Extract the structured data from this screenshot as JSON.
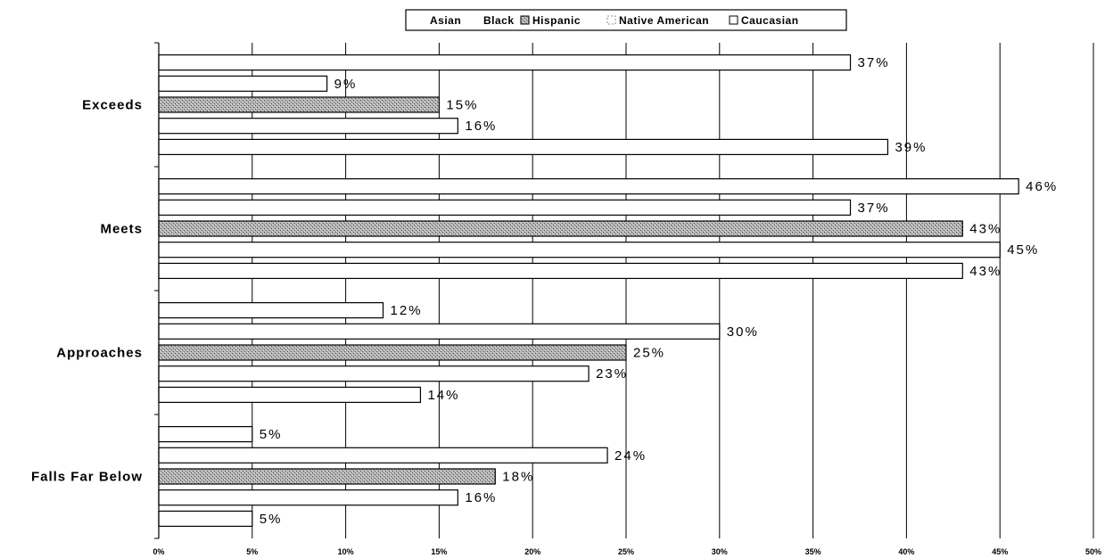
{
  "chart_data": {
    "type": "bar",
    "orientation": "horizontal",
    "categories": [
      "Exceeds",
      "Meets",
      "Approaches",
      "Falls Far Below"
    ],
    "series": [
      {
        "name": "Asian",
        "values": [
          37,
          46,
          12,
          5
        ],
        "color": "#ffffff"
      },
      {
        "name": "Black",
        "values": [
          9,
          37,
          30,
          24
        ],
        "color": "#ffffff"
      },
      {
        "name": "Hispanic",
        "values": [
          15,
          43,
          25,
          18
        ],
        "color": "#9a9a9a"
      },
      {
        "name": "Native American",
        "values": [
          16,
          45,
          23,
          16
        ],
        "color": "#ffffff"
      },
      {
        "name": "Caucasian",
        "values": [
          39,
          43,
          14,
          5
        ],
        "color": "#ffffff"
      }
    ],
    "value_labels": [
      [
        "37%",
        "46%",
        "12%",
        "5%"
      ],
      [
        "9%",
        "37%",
        "30%",
        "24%"
      ],
      [
        "15%",
        "43%",
        "25%",
        "18%"
      ],
      [
        "16%",
        "45%",
        "23%",
        "16%"
      ],
      [
        "39%",
        "43%",
        "14%",
        "5%"
      ]
    ],
    "x_ticks": [
      "0%",
      "5%",
      "10%",
      "15%",
      "20%",
      "25%",
      "30%",
      "35%",
      "40%",
      "45%",
      "50%"
    ],
    "xlim": [
      0,
      50
    ],
    "grid": true,
    "legend": {
      "position": "top-center",
      "labels": [
        "Asian",
        "Black",
        "Hispanic",
        "Native American",
        "Caucasian"
      ]
    }
  }
}
